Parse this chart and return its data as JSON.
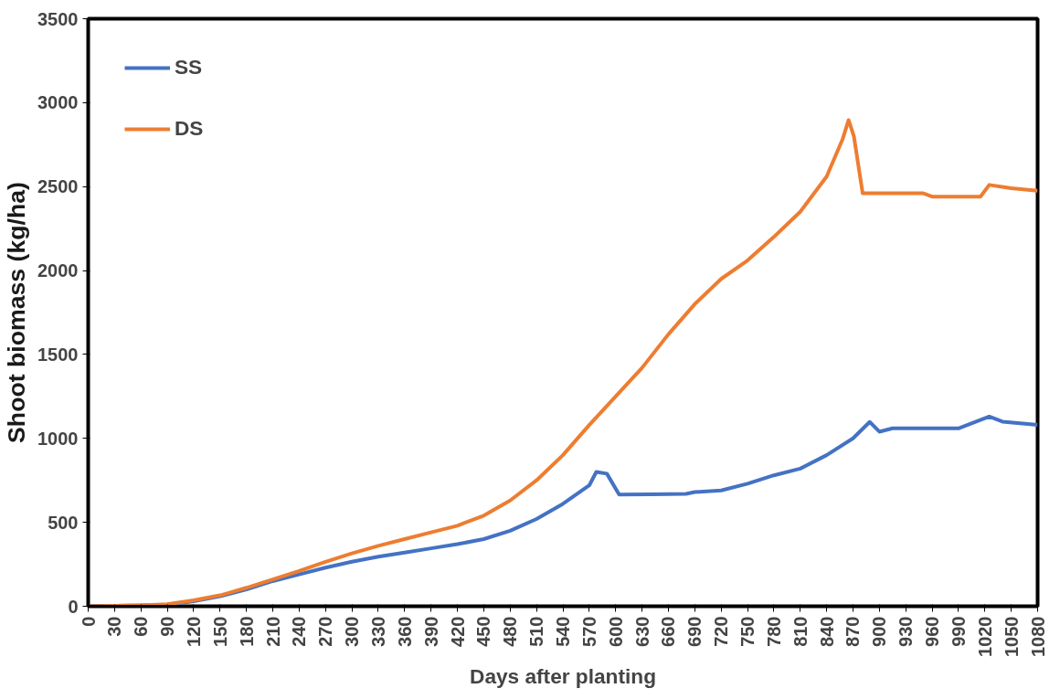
{
  "chart_data": {
    "type": "line",
    "xlabel": "Days after planting",
    "ylabel": "Shoot biomass (kg/ha)",
    "xlim": [
      0,
      1080
    ],
    "xticks": [
      0,
      30,
      60,
      90,
      120,
      150,
      180,
      210,
      240,
      270,
      300,
      330,
      360,
      390,
      420,
      450,
      480,
      510,
      540,
      570,
      600,
      630,
      660,
      690,
      720,
      750,
      780,
      810,
      840,
      870,
      900,
      930,
      960,
      990,
      1020,
      1050,
      1080
    ],
    "ylim": [
      0,
      3500
    ],
    "yticks": [
      0,
      500,
      1000,
      1500,
      2000,
      2500,
      3000,
      3500
    ],
    "grid": false,
    "legend": "top left",
    "series": [
      {
        "name": "SS",
        "color": "#4472c4",
        "x": [
          0,
          60,
          90,
          120,
          150,
          180,
          210,
          240,
          270,
          300,
          330,
          360,
          390,
          420,
          450,
          480,
          510,
          540,
          570,
          578,
          590,
          604,
          640,
          680,
          690,
          720,
          750,
          780,
          810,
          840,
          870,
          889,
          900,
          915,
          940,
          990,
          1000,
          1025,
          1040,
          1080
        ],
        "values": [
          0,
          5,
          10,
          30,
          60,
          100,
          150,
          190,
          230,
          265,
          295,
          320,
          345,
          370,
          400,
          450,
          520,
          610,
          720,
          800,
          790,
          666,
          667,
          670,
          680,
          690,
          730,
          780,
          820,
          900,
          1000,
          1098,
          1040,
          1060,
          1060,
          1060,
          1080,
          1130,
          1100,
          1080
        ]
      },
      {
        "name": "DS",
        "color": "#ed7d31",
        "x": [
          0,
          60,
          90,
          120,
          150,
          180,
          210,
          240,
          270,
          300,
          330,
          360,
          390,
          420,
          450,
          480,
          510,
          540,
          570,
          600,
          630,
          660,
          690,
          720,
          750,
          780,
          810,
          840,
          858,
          865,
          871,
          881,
          950,
          960,
          1015,
          1025,
          1050,
          1080
        ],
        "values": [
          0,
          5,
          12,
          35,
          65,
          110,
          160,
          210,
          265,
          315,
          360,
          400,
          440,
          480,
          540,
          630,
          750,
          900,
          1080,
          1250,
          1420,
          1620,
          1800,
          1950,
          2060,
          2200,
          2350,
          2560,
          2780,
          2896,
          2800,
          2460,
          2460,
          2440,
          2440,
          2510,
          2490,
          2475
        ]
      }
    ]
  }
}
